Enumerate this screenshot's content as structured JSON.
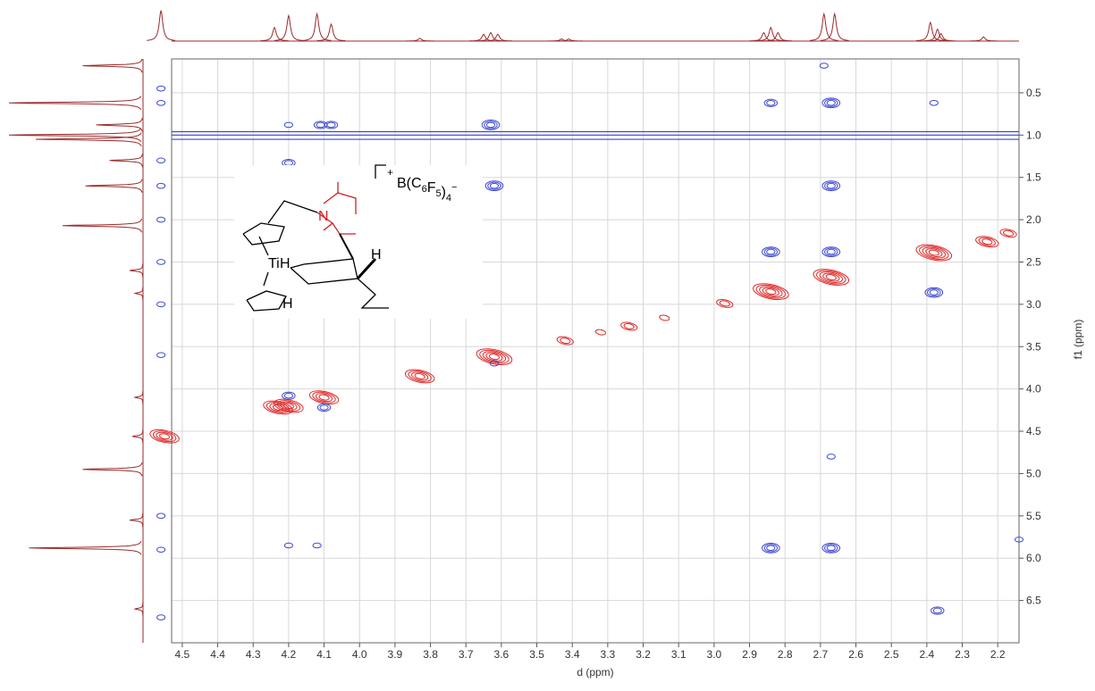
{
  "chart_data": {
    "type": "contour",
    "x_label": "d (ppm)",
    "y_label": "f1 (ppm)",
    "xlim": [
      4.53,
      2.14
    ],
    "ylim": [
      0.1,
      7.0
    ],
    "grid": true,
    "xticks": [
      4.5,
      4.4,
      4.3,
      4.2,
      4.1,
      {
        "value": 4,
        "label": "4.0"
      },
      3.9,
      3.8,
      3.7,
      3.6,
      3.5,
      3.4,
      3.3,
      3.2,
      3.1,
      {
        "value": 3,
        "label": "3.0"
      },
      2.9,
      2.8,
      2.7,
      2.6,
      2.5,
      2.4,
      2.3,
      2.2
    ],
    "yticks": [
      0.5,
      {
        "value": 1,
        "label": "1.0"
      },
      1.5,
      {
        "value": 2,
        "label": "2.0"
      },
      2.5,
      {
        "value": 3,
        "label": "3.0"
      },
      3.5,
      {
        "value": 4,
        "label": "4.0"
      },
      4.5,
      {
        "value": 5,
        "label": "5.0"
      },
      5.5,
      {
        "value": 6,
        "label": "6.0"
      },
      6.5
    ],
    "series": [
      {
        "color": "#e02828",
        "x": [
          4.55,
          4.23,
          4.2,
          4.1,
          3.83,
          3.62,
          3.42,
          3.32,
          3.24,
          3.14,
          2.97,
          2.84,
          2.67,
          2.38,
          2.23,
          2.17
        ],
        "y": [
          4.56,
          4.22,
          4.2,
          4.1,
          3.85,
          3.62,
          3.43,
          3.33,
          3.26,
          3.16,
          2.99,
          2.85,
          2.68,
          2.39,
          2.26,
          2.16
        ],
        "levels": [
          4,
          4,
          4,
          4,
          4,
          5,
          2,
          1,
          2,
          1,
          2,
          5,
          5,
          5,
          3,
          2
        ]
      },
      {
        "color": "#3a46d0",
        "x": [
          4.56,
          4.56,
          2.84,
          2.67,
          2.38,
          4.2,
          4.2,
          4.11,
          4.08,
          3.63,
          3.62,
          2.67,
          2.84,
          2.67,
          2.38,
          2.69,
          4.2,
          4.12,
          2.67,
          2.14,
          2.84,
          2.67,
          2.37,
          4.2,
          4.1,
          3.62,
          4.56,
          4.56,
          4.56,
          4.56,
          4.56,
          4.56,
          4.56,
          4.56,
          4.56
        ],
        "y": [
          0.45,
          0.62,
          0.62,
          0.62,
          0.62,
          1.33,
          0.88,
          0.88,
          0.88,
          0.88,
          1.6,
          1.6,
          2.38,
          2.38,
          2.86,
          0.18,
          5.85,
          5.85,
          4.8,
          5.78,
          5.88,
          5.88,
          6.62,
          4.08,
          4.22,
          3.7,
          1.3,
          1.6,
          2.0,
          2.5,
          3.0,
          3.6,
          5.5,
          5.9,
          6.7
        ],
        "levels": [
          1,
          1,
          2,
          3,
          1,
          2,
          1,
          2,
          2,
          3,
          3,
          3,
          3,
          3,
          3,
          1,
          1,
          1,
          1,
          1,
          3,
          3,
          2,
          2,
          2,
          1,
          1,
          1,
          1,
          1,
          1,
          1,
          1,
          1,
          1
        ]
      }
    ],
    "ridges_f1": [
      0.96,
      1.0,
      1.05
    ],
    "f2_projection": {
      "color": "#9b2a2a",
      "x": [
        4.56,
        4.24,
        4.2,
        4.12,
        4.08,
        3.83,
        3.65,
        3.63,
        3.61,
        3.43,
        3.41,
        2.86,
        2.84,
        2.82,
        2.69,
        2.66,
        2.39,
        2.37,
        2.36,
        2.24
      ],
      "height": [
        0.9,
        0.4,
        0.75,
        0.8,
        0.5,
        0.08,
        0.2,
        0.25,
        0.2,
        0.06,
        0.06,
        0.25,
        0.4,
        0.25,
        0.8,
        0.8,
        0.55,
        0.35,
        0.22,
        0.12
      ]
    },
    "f1_projection": {
      "color": "#9b2a2a",
      "y": [
        0.18,
        0.62,
        0.88,
        1.0,
        1.05,
        1.3,
        1.6,
        2.07,
        2.6,
        2.87,
        4.1,
        4.56,
        4.95,
        5.55,
        5.88,
        6.6
      ],
      "height": [
        0.45,
        1.0,
        0.35,
        1.0,
        0.8,
        0.25,
        0.43,
        0.6,
        0.1,
        0.06,
        0.06,
        0.08,
        0.45,
        0.1,
        0.85,
        0.06
      ]
    },
    "structure": {
      "labels": [
        "N",
        "Ti",
        "H",
        "H",
        "H"
      ],
      "charge": "+",
      "counterion": [
        {
          "text": "B(C"
        },
        {
          "sub": "6"
        },
        {
          "text": "F"
        },
        {
          "sub": "5"
        },
        {
          "text": ")"
        },
        {
          "sub": "4"
        },
        {
          "sup": "−"
        }
      ]
    }
  }
}
